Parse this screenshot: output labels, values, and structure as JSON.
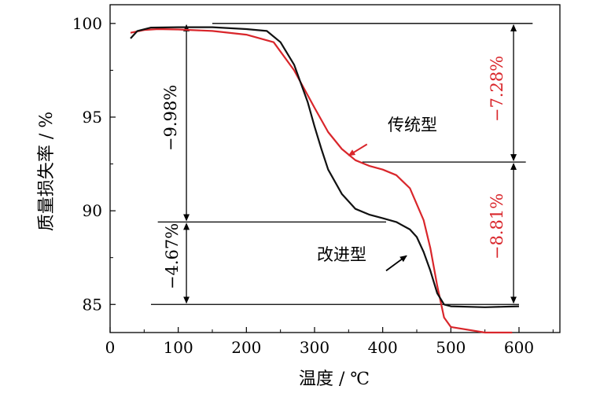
{
  "chart_data": {
    "type": "line",
    "xlabel": "温度 / ℃",
    "ylabel": "质量损失率 / %",
    "xlim": [
      0,
      660
    ],
    "ylim": [
      83.5,
      101
    ],
    "xticks": [
      "0",
      "100",
      "200",
      "300",
      "400",
      "500",
      "600"
    ],
    "yticks": [
      "100",
      "95",
      "90",
      "85"
    ],
    "series": [
      {
        "name": "传统型",
        "color": "#d9262b",
        "x": [
          30,
          50,
          70,
          100,
          150,
          200,
          240,
          270,
          300,
          320,
          340,
          360,
          380,
          400,
          420,
          440,
          460,
          470,
          480,
          490,
          500,
          550,
          590
        ],
        "y": [
          99.5,
          99.65,
          99.7,
          99.68,
          99.6,
          99.4,
          99.0,
          97.5,
          95.5,
          94.2,
          93.3,
          92.7,
          92.4,
          92.2,
          91.9,
          91.2,
          89.5,
          88.0,
          86.0,
          84.3,
          83.8,
          83.5,
          83.5
        ]
      },
      {
        "name": "改进型",
        "color": "#111111",
        "x": [
          30,
          40,
          60,
          100,
          150,
          200,
          230,
          250,
          270,
          290,
          300,
          310,
          320,
          340,
          360,
          380,
          400,
          420,
          440,
          450,
          460,
          470,
          480,
          490,
          500,
          550,
          600
        ],
        "y": [
          99.2,
          99.6,
          99.78,
          99.8,
          99.8,
          99.7,
          99.6,
          99.0,
          97.8,
          95.8,
          94.5,
          93.3,
          92.2,
          90.9,
          90.1,
          89.8,
          89.6,
          89.4,
          89.0,
          88.6,
          87.8,
          86.8,
          85.6,
          85.0,
          84.9,
          84.85,
          84.9
        ]
      }
    ],
    "annotations": {
      "trad_label": "传统型",
      "impr_label": "改进型",
      "black_step1": "−9.98%",
      "black_step2": "−4.67%",
      "red_step1": "−7.28%",
      "red_step2": "−8.81%"
    }
  }
}
